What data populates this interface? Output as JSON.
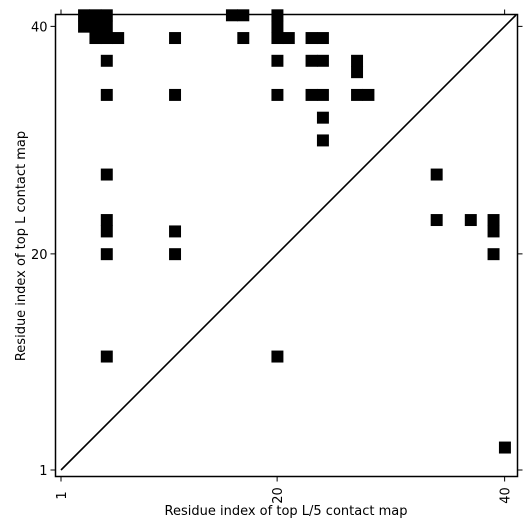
{
  "chart_data": {
    "type": "heatmap",
    "title": "",
    "xlabel": "Residue index of top L/5 contact map",
    "ylabel": "Residue index of top L contact map",
    "xlim": [
      1,
      41
    ],
    "ylim": [
      1,
      41
    ],
    "x_ticks": [
      1,
      20,
      40
    ],
    "y_ticks": [
      1,
      20,
      40
    ],
    "x_tick_labels": [
      "1",
      "20",
      "40"
    ],
    "y_tick_labels": [
      "1",
      "20",
      "40"
    ],
    "diagonal": true,
    "grid": false,
    "cell_color": "#000000",
    "upper_cells": [
      [
        3,
        41
      ],
      [
        4,
        41
      ],
      [
        5,
        41
      ],
      [
        16,
        41
      ],
      [
        17,
        41
      ],
      [
        20,
        41
      ],
      [
        3,
        40
      ],
      [
        4,
        40
      ],
      [
        5,
        40
      ],
      [
        20,
        40
      ],
      [
        4,
        39
      ],
      [
        5,
        39
      ],
      [
        6,
        39
      ],
      [
        11,
        39
      ],
      [
        17,
        39
      ],
      [
        20,
        39
      ],
      [
        21,
        39
      ],
      [
        23,
        39
      ],
      [
        24,
        39
      ],
      [
        5,
        37
      ],
      [
        20,
        37
      ],
      [
        23,
        37
      ],
      [
        24,
        37
      ],
      [
        27,
        37
      ],
      [
        27,
        36
      ],
      [
        5,
        34
      ],
      [
        11,
        34
      ],
      [
        20,
        34
      ],
      [
        23,
        34
      ],
      [
        24,
        34
      ],
      [
        27,
        34
      ],
      [
        28,
        34
      ],
      [
        24,
        32
      ],
      [
        24,
        30
      ],
      [
        5,
        27
      ],
      [
        34,
        27
      ],
      [
        5,
        23
      ],
      [
        34,
        23
      ],
      [
        37,
        23
      ],
      [
        39,
        23
      ],
      [
        5,
        22
      ],
      [
        11,
        22
      ],
      [
        39,
        22
      ],
      [
        5,
        20
      ],
      [
        11,
        20
      ],
      [
        39,
        20
      ],
      [
        5,
        11
      ],
      [
        20,
        11
      ]
    ],
    "lower_cells": [
      [
        40,
        3
      ]
    ]
  }
}
